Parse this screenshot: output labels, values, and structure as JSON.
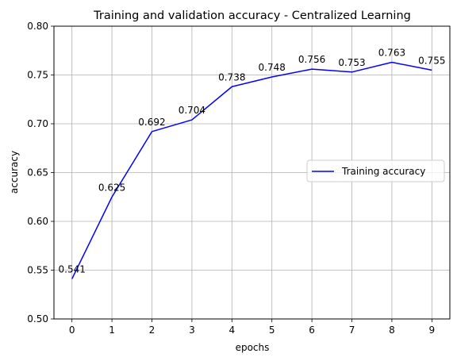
{
  "chart_data": {
    "type": "line",
    "title": "Training and validation accuracy - Centralized Learning",
    "xlabel": "epochs",
    "ylabel": "accuracy",
    "x": [
      0,
      1,
      2,
      3,
      4,
      5,
      6,
      7,
      8,
      9
    ],
    "xlim": [
      -0.45,
      9.45
    ],
    "ylim": [
      0.5,
      0.8
    ],
    "xticks": [
      0,
      1,
      2,
      3,
      4,
      5,
      6,
      7,
      8,
      9
    ],
    "yticks": [
      0.5,
      0.55,
      0.6,
      0.65,
      0.7,
      0.75,
      0.8
    ],
    "ytick_labels": [
      "0.50",
      "0.55",
      "0.60",
      "0.65",
      "0.70",
      "0.75",
      "0.80"
    ],
    "grid": true,
    "legend_position": "center-right",
    "series": [
      {
        "name": "Training accuracy",
        "color": "#0000ff",
        "values": [
          0.541,
          0.625,
          0.692,
          0.704,
          0.738,
          0.748,
          0.756,
          0.753,
          0.763,
          0.755
        ],
        "labels": [
          "0.541",
          "0.625",
          "0.692",
          "0.704",
          "0.738",
          "0.748",
          "0.756",
          "0.753",
          "0.763",
          "0.755"
        ]
      }
    ]
  }
}
